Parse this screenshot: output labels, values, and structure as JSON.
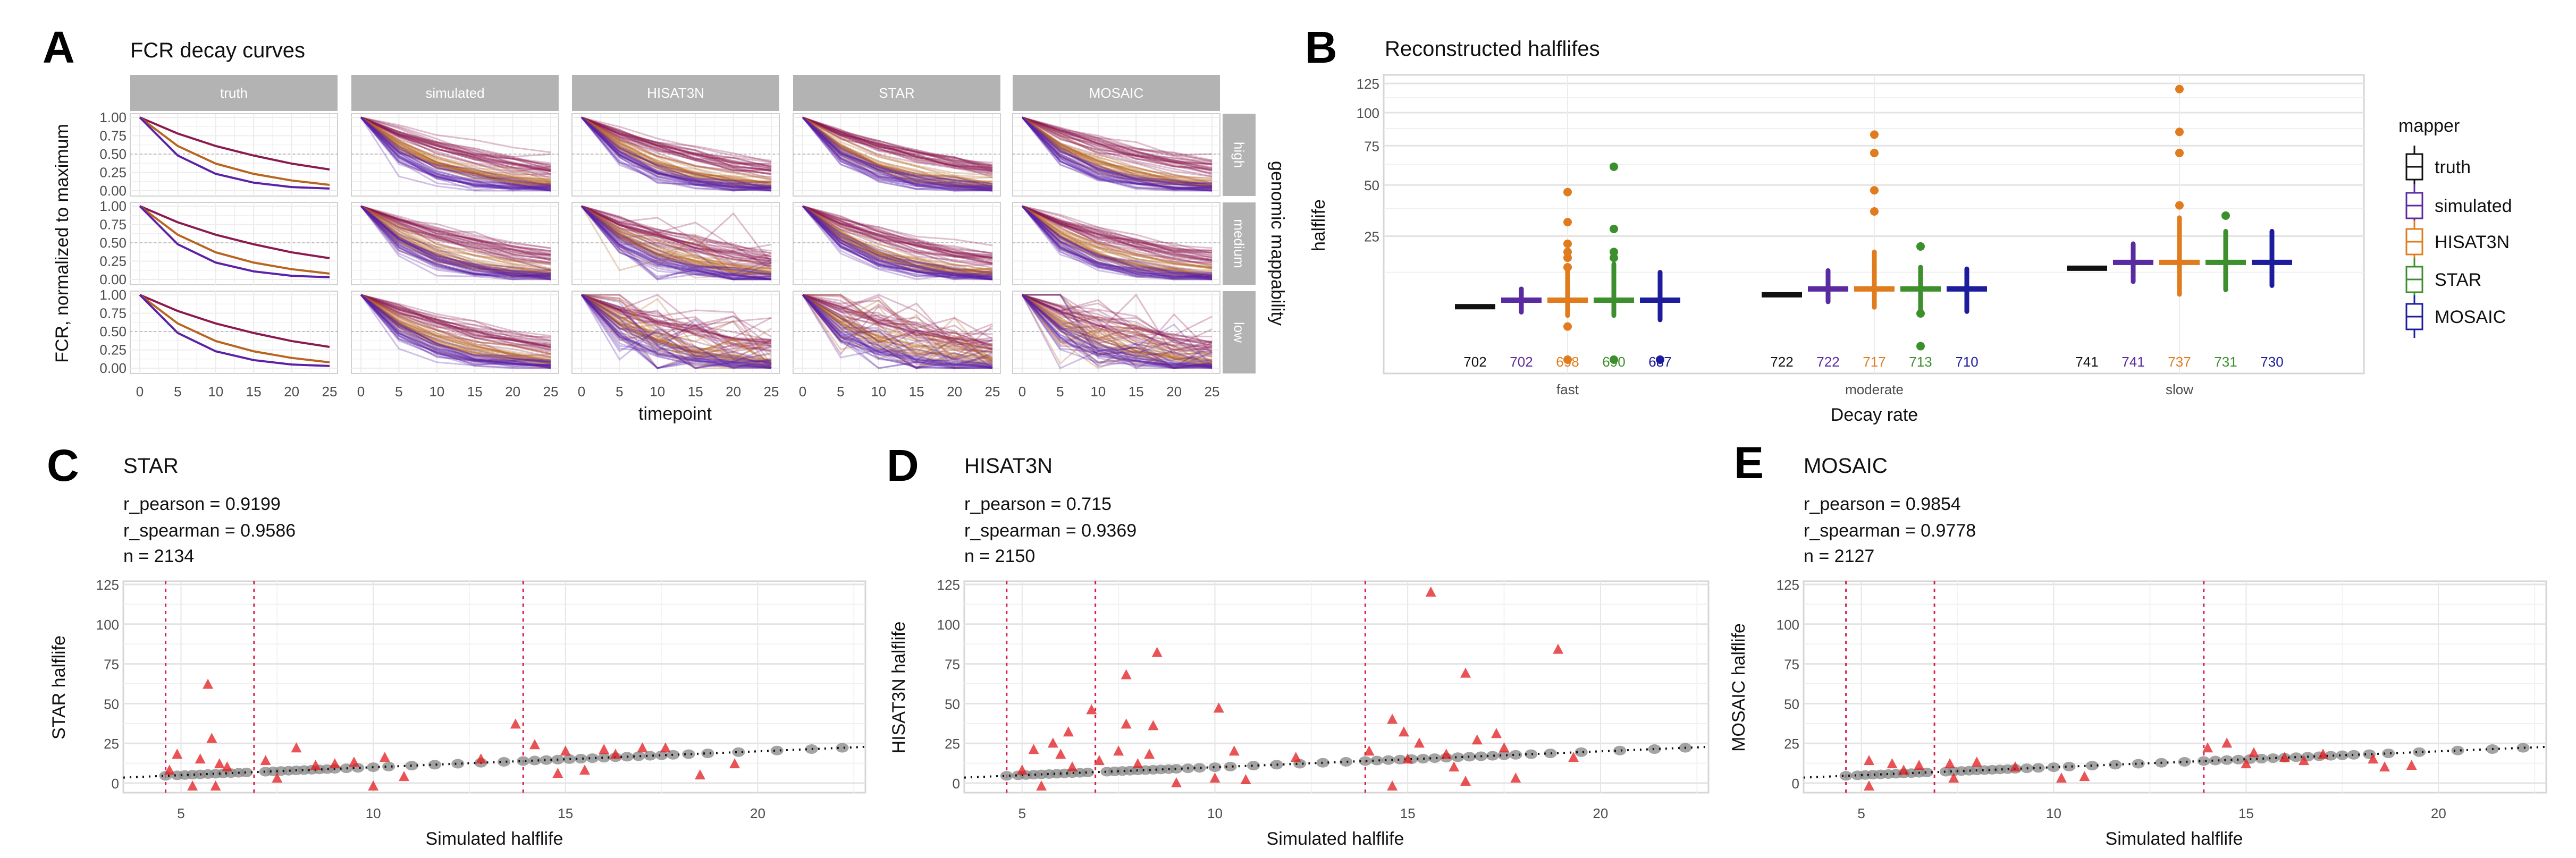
{
  "panels": {
    "A": {
      "letter": "A",
      "title": "FCR decay curves",
      "ylabel": "FCR, normalized to maximum",
      "xlabel": "timepoint",
      "facet_row_title": "genomic mappability"
    },
    "B": {
      "letter": "B",
      "title": "Reconstructed halflifes",
      "ylabel": "halflife",
      "xlabel": "Decay rate",
      "legend_title": "mapper"
    },
    "C": {
      "letter": "C",
      "title": "STAR",
      "r_pearson": "r_pearson = 0.9199",
      "r_spearman": "r_spearman = 0.9586",
      "n": "n = 2134",
      "ylabel": "STAR halflife",
      "xlabel": "Simulated halflife"
    },
    "D": {
      "letter": "D",
      "title": "HISAT3N",
      "r_pearson": "r_pearson = 0.715",
      "r_spearman": "r_spearman = 0.9369",
      "n": "n = 2150",
      "ylabel": "HISAT3N halflife",
      "xlabel": "Simulated halflife"
    },
    "E": {
      "letter": "E",
      "title": "MOSAIC",
      "r_pearson": "r_pearson = 0.9854",
      "r_spearman": "r_spearman = 0.9778",
      "n": "n = 2127",
      "ylabel": "MOSAIC halflife",
      "xlabel": "Simulated halflife"
    }
  },
  "chart_data": [
    {
      "id": "A",
      "type": "line",
      "title": "FCR decay curves",
      "xlabel": "timepoint",
      "ylabel": "FCR, normalized to maximum",
      "facet_columns": [
        "truth",
        "simulated",
        "HISAT3N",
        "STAR",
        "MOSAIC"
      ],
      "facet_rows": [
        "high",
        "medium",
        "low"
      ],
      "x_ticks": [
        "0",
        "5",
        "10",
        "15",
        "20",
        "25"
      ],
      "y_ticks": [
        "0.00",
        "0.25",
        "0.50",
        "0.75",
        "1.00"
      ],
      "xlim": [
        0,
        25
      ],
      "ylim": [
        0,
        1
      ],
      "reference_line_y": 0.5,
      "timepoints": [
        0,
        5,
        10,
        15,
        20,
        25
      ],
      "decay_classes": [
        {
          "class": "slow",
          "halflife": 14,
          "color": "#8b1a4f",
          "values": [
            1.0,
            0.78,
            0.61,
            0.48,
            0.37,
            0.29
          ]
        },
        {
          "class": "moderate",
          "halflife": 7,
          "color": "#b8651f",
          "values": [
            1.0,
            0.61,
            0.37,
            0.23,
            0.14,
            0.08
          ]
        },
        {
          "class": "fast",
          "halflife": 4.7,
          "color": "#5b21a8",
          "values": [
            1.0,
            0.48,
            0.23,
            0.11,
            0.05,
            0.03
          ]
        }
      ],
      "noisy_facets": [
        "HISAT3N/medium",
        "HISAT3N/low",
        "STAR/low",
        "MOSAIC/low"
      ],
      "grid": true
    },
    {
      "id": "B",
      "type": "box",
      "title": "Reconstructed halflifes",
      "xlabel": "Decay rate",
      "ylabel": "halflife",
      "y_scale": "sqrt",
      "y_ticks": [
        "25",
        "50",
        "75",
        "100",
        "125"
      ],
      "ylim": [
        0,
        128
      ],
      "categories": [
        "fast",
        "moderate",
        "slow"
      ],
      "legend": "right",
      "series": [
        {
          "name": "truth",
          "color": "#111111",
          "groups": [
            {
              "median": 4.6,
              "lo": 4.6,
              "hi": 4.6,
              "outliers": [],
              "n": "702"
            },
            {
              "median": 6.9,
              "lo": 6.9,
              "hi": 6.9,
              "outliers": [],
              "n": "722"
            },
            {
              "median": 13.7,
              "lo": 13.7,
              "hi": 13.7,
              "outliers": [],
              "n": "741"
            }
          ]
        },
        {
          "name": "simulated",
          "color": "#5a2aa0",
          "groups": [
            {
              "median": 5.8,
              "lo": 3.7,
              "hi": 8.2,
              "outliers": [],
              "n": "702"
            },
            {
              "median": 8.2,
              "lo": 5.5,
              "hi": 13,
              "outliers": [],
              "n": "722"
            },
            {
              "median": 15.5,
              "lo": 10,
              "hi": 22,
              "outliers": [],
              "n": "741"
            }
          ]
        },
        {
          "name": "HISAT3N",
          "color": "#e07b1e",
          "groups": [
            {
              "median": 5.8,
              "lo": 3.2,
              "hi": 13.5,
              "outliers": [
                0,
                1.8,
                14,
                17,
                19,
                22,
                31,
                46
              ],
              "n": "698"
            },
            {
              "median": 8.2,
              "lo": 4.5,
              "hi": 19,
              "outliers": [
                36,
                47,
                70,
                83
              ],
              "n": "717"
            },
            {
              "median": 15.5,
              "lo": 7,
              "hi": 33,
              "outliers": [
                39,
                70,
                85,
                120
              ],
              "n": "737"
            }
          ]
        },
        {
          "name": "STAR",
          "color": "#3c8f2c",
          "groups": [
            {
              "median": 5.8,
              "lo": 3.2,
              "hi": 15,
              "outliers": [
                0,
                17,
                19,
                28,
                61
              ],
              "n": "690"
            },
            {
              "median": 8.2,
              "lo": 4,
              "hi": 14,
              "outliers": [
                0.3,
                3.5,
                21
              ],
              "n": "713"
            },
            {
              "median": 15.5,
              "lo": 8,
              "hi": 27,
              "outliers": [
                34
              ],
              "n": "731"
            }
          ]
        },
        {
          "name": "MOSAIC",
          "color": "#1c1c9c",
          "groups": [
            {
              "median": 5.8,
              "lo": 2.6,
              "hi": 12.5,
              "outliers": [
                0
              ],
              "n": "687"
            },
            {
              "median": 8.2,
              "lo": 3.8,
              "hi": 13.5,
              "outliers": [],
              "n": "710"
            },
            {
              "median": 15.5,
              "lo": 9,
              "hi": 27,
              "outliers": [],
              "n": "730"
            }
          ]
        }
      ]
    },
    {
      "id": "C",
      "type": "scatter",
      "title": "STAR",
      "xlabel": "Simulated halflife",
      "ylabel": "STAR halflife",
      "xlim": [
        3.5,
        22.8
      ],
      "ylim": [
        -6,
        127
      ],
      "x_ticks": [
        "5",
        "10",
        "15",
        "20"
      ],
      "y_ticks": [
        "0",
        "25",
        "50",
        "75",
        "100",
        "125"
      ],
      "reference_lines_x": [
        4.6,
        6.9,
        13.9
      ],
      "identity_line": true,
      "concordant_x": [
        4.6,
        4.9,
        5.1,
        5.3,
        5.5,
        5.7,
        5.9,
        6.1,
        6.3,
        6.5,
        6.7,
        7.2,
        7.4,
        7.6,
        7.8,
        8.0,
        8.2,
        8.4,
        8.6,
        8.8,
        9.0,
        9.3,
        9.6,
        10.0,
        10.4,
        11.0,
        11.6,
        12.2,
        12.8,
        13.4,
        13.9,
        14.2,
        14.5,
        14.8,
        15.1,
        15.4,
        15.7,
        16.0,
        16.3,
        16.6,
        16.9,
        17.2,
        17.5,
        17.8,
        18.2,
        18.7,
        19.5,
        20.5,
        21.4,
        22.2
      ],
      "discordant": [
        [
          5.7,
          62
        ],
        [
          5.8,
          28
        ],
        [
          8,
          22
        ],
        [
          13.7,
          37
        ],
        [
          14.2,
          24
        ],
        [
          4.9,
          18
        ],
        [
          4.7,
          8
        ],
        [
          6,
          12
        ],
        [
          5.5,
          15
        ],
        [
          6.2,
          10
        ],
        [
          7.2,
          14
        ],
        [
          8.5,
          11
        ],
        [
          10,
          -2
        ],
        [
          10.3,
          16
        ],
        [
          10.8,
          4
        ],
        [
          15,
          20
        ],
        [
          16,
          21
        ],
        [
          17,
          22
        ],
        [
          17.6,
          22
        ],
        [
          18.5,
          5
        ],
        [
          19.4,
          12
        ],
        [
          15.5,
          8
        ],
        [
          14.8,
          6
        ],
        [
          16.3,
          18
        ],
        [
          12.8,
          15
        ],
        [
          5.3,
          -2
        ],
        [
          5.9,
          -2
        ],
        [
          9,
          12
        ],
        [
          9.5,
          13
        ],
        [
          7.5,
          3
        ]
      ]
    },
    {
      "id": "D",
      "type": "scatter",
      "title": "HISAT3N",
      "xlabel": "Simulated halflife",
      "ylabel": "HISAT3N halflife",
      "xlim": [
        3.5,
        22.8
      ],
      "ylim": [
        -6,
        127
      ],
      "x_ticks": [
        "5",
        "10",
        "15",
        "20"
      ],
      "y_ticks": [
        "0",
        "25",
        "50",
        "75",
        "100",
        "125"
      ],
      "reference_lines_x": [
        4.6,
        6.9,
        13.9
      ],
      "identity_line": true,
      "concordant_x": [
        4.6,
        4.9,
        5.1,
        5.3,
        5.5,
        5.7,
        5.9,
        6.1,
        6.3,
        6.5,
        6.7,
        7.2,
        7.4,
        7.6,
        7.8,
        8.0,
        8.2,
        8.4,
        8.6,
        8.8,
        9.0,
        9.3,
        9.6,
        10.0,
        10.4,
        11.0,
        11.6,
        12.2,
        12.8,
        13.4,
        13.9,
        14.2,
        14.5,
        14.8,
        15.1,
        15.4,
        15.7,
        16.0,
        16.3,
        16.6,
        16.9,
        17.2,
        17.5,
        17.8,
        18.2,
        18.7,
        19.5,
        20.5,
        21.4,
        22.2
      ],
      "discordant": [
        [
          15.6,
          120
        ],
        [
          8.5,
          82
        ],
        [
          18.9,
          84
        ],
        [
          7.7,
          68
        ],
        [
          16.5,
          69
        ],
        [
          6.8,
          46
        ],
        [
          10.1,
          47
        ],
        [
          7.7,
          37
        ],
        [
          8.4,
          36
        ],
        [
          14.6,
          40
        ],
        [
          14.9,
          32
        ],
        [
          6.2,
          32
        ],
        [
          5.3,
          21
        ],
        [
          17.3,
          31
        ],
        [
          16.8,
          27
        ],
        [
          5.8,
          25
        ],
        [
          6,
          18
        ],
        [
          7.5,
          20
        ],
        [
          8.3,
          18
        ],
        [
          10.5,
          20
        ],
        [
          12.1,
          16
        ],
        [
          14,
          20
        ],
        [
          15.3,
          25
        ],
        [
          17.5,
          22
        ],
        [
          19.3,
          16
        ],
        [
          5,
          8
        ],
        [
          5.5,
          -2
        ],
        [
          9,
          0
        ],
        [
          10,
          3
        ],
        [
          10.8,
          2
        ],
        [
          14.6,
          -2
        ],
        [
          16.5,
          1
        ],
        [
          17.8,
          3
        ],
        [
          6.3,
          10
        ],
        [
          7,
          14
        ],
        [
          8,
          12
        ],
        [
          15,
          15
        ],
        [
          16,
          18
        ],
        [
          16.2,
          10
        ]
      ]
    },
    {
      "id": "E",
      "type": "scatter",
      "title": "MOSAIC",
      "xlabel": "Simulated halflife",
      "ylabel": "MOSAIC halflife",
      "xlim": [
        3.5,
        22.8
      ],
      "ylim": [
        -6,
        127
      ],
      "x_ticks": [
        "5",
        "10",
        "15",
        "20"
      ],
      "y_ticks": [
        "0",
        "25",
        "50",
        "75",
        "100",
        "125"
      ],
      "reference_lines_x": [
        4.6,
        6.9,
        13.9
      ],
      "identity_line": true,
      "concordant_x": [
        4.6,
        4.9,
        5.1,
        5.3,
        5.5,
        5.7,
        5.9,
        6.1,
        6.3,
        6.5,
        6.7,
        7.2,
        7.4,
        7.6,
        7.8,
        8.0,
        8.2,
        8.4,
        8.6,
        8.8,
        9.0,
        9.3,
        9.6,
        10.0,
        10.4,
        11.0,
        11.6,
        12.2,
        12.8,
        13.4,
        13.9,
        14.2,
        14.5,
        14.8,
        15.1,
        15.4,
        15.7,
        16.0,
        16.3,
        16.6,
        16.9,
        17.2,
        17.5,
        17.8,
        18.2,
        18.7,
        19.5,
        20.5,
        21.4,
        22.2
      ],
      "discordant": [
        [
          14,
          22
        ],
        [
          14.5,
          25
        ],
        [
          5.2,
          14
        ],
        [
          5.8,
          12
        ],
        [
          6.1,
          8
        ],
        [
          6.5,
          11
        ],
        [
          7.3,
          12
        ],
        [
          8,
          13
        ],
        [
          9,
          10
        ],
        [
          10.2,
          3
        ],
        [
          10.8,
          4
        ],
        [
          5.2,
          -2
        ],
        [
          7.4,
          3
        ],
        [
          15,
          12
        ],
        [
          16,
          16
        ],
        [
          17,
          18
        ],
        [
          18.3,
          15
        ],
        [
          18.6,
          10
        ],
        [
          19.3,
          11
        ],
        [
          16.5,
          14
        ],
        [
          15.2,
          19
        ]
      ]
    }
  ],
  "colors": {
    "strip": "#b3b3b3",
    "discordant": "#e31a1c",
    "concordant": "#8c8c8c",
    "reference_line": "#d6204a"
  }
}
